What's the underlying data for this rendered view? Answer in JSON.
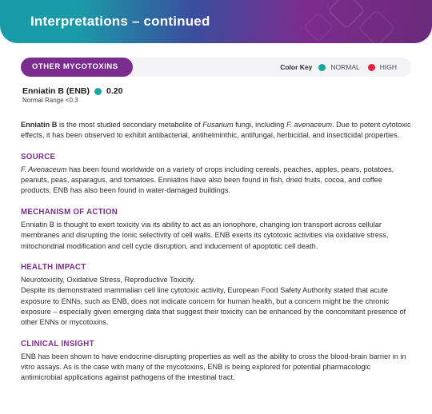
{
  "colors": {
    "banner_gradient_start": "#1a9ba8",
    "banner_gradient_mid": "#3b4d9e",
    "banner_gradient_end": "#6b2a7a",
    "pill_bg": "#7b2d8e",
    "section_title": "#7b2d8e",
    "normal_dot": "#1aa89a",
    "high_dot": "#e6203d",
    "page_bg": "#ffffff",
    "body_text": "#2d2d2d"
  },
  "banner": {
    "title": "Interpretations – continued"
  },
  "category": {
    "label": "OTHER MYCOTOXINS",
    "color_key_label": "Color Key",
    "legend": [
      {
        "name": "NORMAL",
        "color": "#1aa89a"
      },
      {
        "name": "HIGH",
        "color": "#e6203d"
      }
    ]
  },
  "result": {
    "name": "Enniatin B (ENB)",
    "status_color": "#1aa89a",
    "value": "0.20",
    "range_text": "Normal Range <0.3"
  },
  "intro": {
    "lead_bold": "Enniatin B",
    "text_a": " is the most studied secondary metabolite of ",
    "ital_a": "Fusarium",
    "text_b": " fungi, including ",
    "ital_b": "F. avenaceum",
    "text_c": ". Due to potent cytotoxic effects, it has been observed to exhibit antibacterial, antihelminthic, antifungal, herbicidal, and insecticidal properties."
  },
  "sections": {
    "source": {
      "title": "SOURCE",
      "ital_lead": "F. Avenaceum",
      "text": " has been found worldwide on a variety of crops including cereals, peaches, apples, pears, potatoes, peanuts, peas, asparagus, and tomatoes. Enniatins have also been found in fish, dried fruits, cocoa, and coffee products. ENB has also been found in water-damaged buildings."
    },
    "mechanism": {
      "title": "MECHANISM OF ACTION",
      "text": "Enniatin B is thought to exert toxicity via its ability to act as an ionophore, changing ion transport across cellular membranes and disrupting the ionic selectivity of cell walls. ENB exerts its cytotoxic activities via oxidative stress, mitochondrial modification and cell cycle disruption, and inducement of apoptotic cell death."
    },
    "health": {
      "title": "HEALTH IMPACT",
      "line1": "Neurotoxicity, Oxidative Stress, Reproductive Toxicity.",
      "text": "Despite its demonstrated mammalian cell line cytotoxic activity, European Food Safety Authority stated that acute exposure to ENNs, such as ENB, does not indicate concern for human health, but a concern might be the chronic exposure – especially given emerging data that suggest their toxicity can be enhanced by the concomitant presence of other ENNs or mycotoxins."
    },
    "clinical": {
      "title": "CLINICAL INSIGHT",
      "text": "ENB has been shown to have endocrine-disrupting properties as well as the ability to cross the blood-brain barrier in in vitro assays. As is the case with many of the mycotoxins, ENB is being explored for potential pharmacologic antimicrobial applications against pathogens of the intestinal tract."
    }
  }
}
